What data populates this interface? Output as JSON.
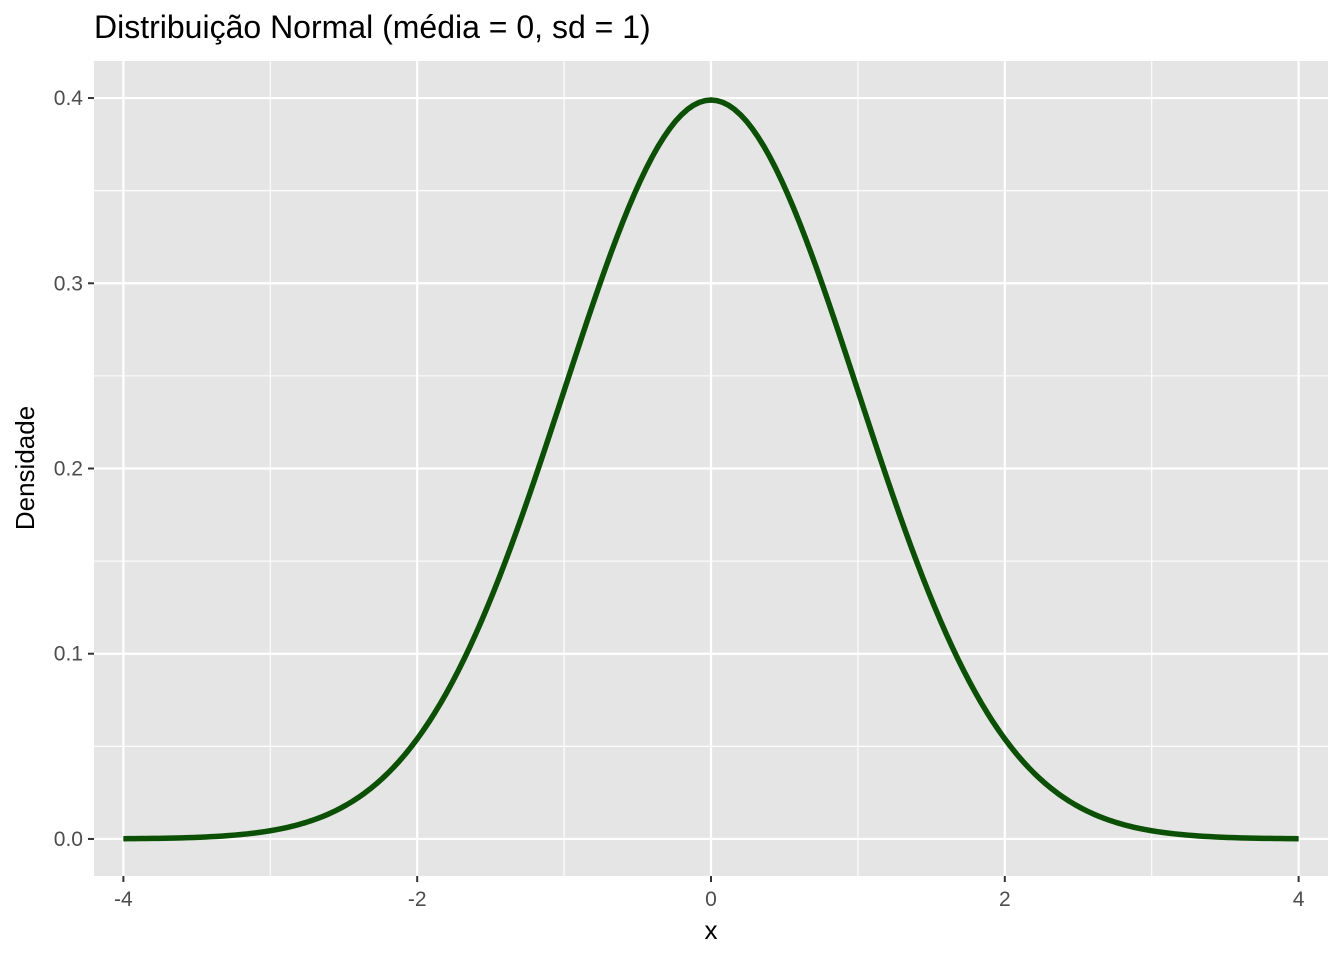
{
  "chart_data": {
    "type": "line",
    "title": "Distribuição Normal (média = 0, sd = 1)",
    "xlabel": "x",
    "ylabel": "Densidade",
    "xlim": [
      -4.2,
      4.2
    ],
    "ylim": [
      -0.02,
      0.42
    ],
    "x_ticks": [
      -4,
      -2,
      0,
      2,
      4
    ],
    "x_tick_labels": [
      "-4",
      "-2",
      "0",
      "2",
      "4"
    ],
    "x_minor_ticks": [
      -3,
      -1,
      1,
      3
    ],
    "y_ticks": [
      0.0,
      0.1,
      0.2,
      0.3,
      0.4
    ],
    "y_tick_labels": [
      "0.0",
      "0.1",
      "0.2",
      "0.3",
      "0.4"
    ],
    "y_minor_ticks": [
      0.05,
      0.15,
      0.25,
      0.35
    ],
    "grid": true,
    "legend": "none",
    "series": [
      {
        "color": "#0b5004",
        "x": [
          -4,
          -3.5,
          -3,
          -2.5,
          -2,
          -1.75,
          -1.5,
          -1.25,
          -1,
          -0.75,
          -0.5,
          -0.25,
          0,
          0.25,
          0.5,
          0.75,
          1,
          1.25,
          1.5,
          1.75,
          2,
          2.5,
          3,
          3.5,
          4
        ],
        "y": [
          0.0001,
          0.0009,
          0.0044,
          0.0175,
          0.054,
          0.0863,
          0.1295,
          0.1826,
          0.242,
          0.3011,
          0.3521,
          0.3867,
          0.3989,
          0.3867,
          0.3521,
          0.3011,
          0.242,
          0.1826,
          0.1295,
          0.0863,
          0.054,
          0.0175,
          0.0044,
          0.0009,
          0.0001
        ]
      }
    ]
  },
  "colors": {
    "panel_background": "#e5e5e5",
    "grid_line": "#ffffff",
    "tick_mark": "#333333",
    "tick_label": "#4d4d4d",
    "line": "#0b5004"
  }
}
